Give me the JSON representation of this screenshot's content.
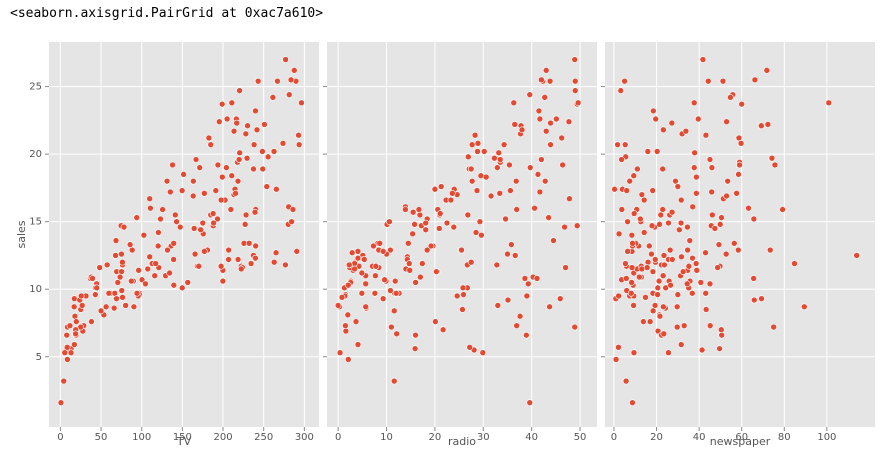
{
  "output_text": "<seaborn.axisgrid.PairGrid at 0xac7a610>",
  "chart_data": {
    "type": "scatter",
    "color": "#e24a33",
    "grid": true,
    "ylabel": "sales",
    "ylim": [
      -0.2,
      28.3
    ],
    "yticks": [
      5,
      10,
      15,
      20,
      25
    ],
    "y": [
      22.1,
      10.4,
      9.3,
      18.5,
      12.9,
      7.2,
      11.8,
      13.2,
      4.8,
      10.6,
      8.6,
      17.4,
      9.2,
      9.7,
      19,
      22.4,
      12.5,
      24.4,
      11.3,
      14.6,
      18,
      12.5,
      5.6,
      15.5,
      9.7,
      12,
      15,
      15.9,
      18.9,
      10.5,
      21.4,
      11.9,
      9.6,
      17.4,
      9.5,
      12.8,
      25.4,
      14.7,
      10.1,
      21.5,
      16.6,
      17.1,
      20.7,
      12.9,
      8.5,
      14.9,
      10.6,
      23.2,
      14.8,
      9.7,
      11.4,
      10.7,
      22.6,
      21.2,
      20.2,
      23.7,
      5.5,
      13.2,
      23.8,
      18.4,
      8.1,
      24.2,
      15.7,
      14,
      18,
      9.3,
      9.5,
      13.4,
      18.9,
      22.3,
      18.3,
      12.4,
      8.8,
      11,
      17,
      8.7,
      6.9,
      14.2,
      5.3,
      11,
      11.8,
      12.3,
      11.3,
      13.6,
      21.7,
      15.2,
      12,
      16,
      12.9,
      16.7,
      11.2,
      7.3,
      19.4,
      22.2,
      11.5,
      16.9,
      11.7,
      15.5,
      25.4,
      17.2,
      11.7,
      23.8,
      14.8,
      14.7,
      20.7,
      19.2,
      7.2,
      8.7,
      5.3,
      19.8,
      13.4,
      21.8,
      14.1,
      15.9,
      14.6,
      12.6,
      12.2,
      9.4,
      15.9,
      6.6,
      15.5,
      7,
      11.6,
      15.2,
      19.7,
      10.6,
      6.6,
      8.8,
      24.7,
      9.7,
      1.6,
      12.7,
      5.7,
      19.6,
      10.8,
      11.6,
      9.5,
      20.8,
      9.6,
      20.7,
      10.9,
      19.2,
      20.1,
      10.4,
      11.4,
      10.3,
      13.2,
      25.4,
      10.9,
      10.1,
      16.1,
      11.6,
      16.6,
      19,
      15.6,
      3.2,
      15.3,
      10.1,
      7.3,
      12.9,
      14.4,
      13.3,
      14.9,
      18,
      11.9,
      11.9,
      8,
      12.2,
      17.1,
      15,
      8.4,
      14.5,
      7.6,
      11.7,
      11.5,
      27,
      20.2,
      11.7,
      11.8,
      12.6,
      10.5,
      12.2,
      8.7,
      26.2,
      17.6,
      22.6,
      10.3,
      17.3,
      15.9,
      6.7,
      10.8,
      9.9,
      5.9,
      19.6,
      17.3,
      7.6,
      9.7,
      12.8,
      25.5,
      13.4
    ],
    "panels": [
      {
        "xlabel": "TV",
        "xlim": [
          -14,
          318
        ],
        "xticks": [
          0,
          50,
          100,
          150,
          200,
          250,
          300
        ],
        "x": [
          230.1,
          44.5,
          17.2,
          151.5,
          180.8,
          8.7,
          57.5,
          120.2,
          8.6,
          199.8,
          66.1,
          214.7,
          23.8,
          97.5,
          204.1,
          195.4,
          67.8,
          281.4,
          69.2,
          147.3,
          218.4,
          237.4,
          13.2,
          228.3,
          62.3,
          262.9,
          142.9,
          240.1,
          248.8,
          70.6,
          292.9,
          112.9,
          97.2,
          265.6,
          95.7,
          290.7,
          266.9,
          74.7,
          43.1,
          228,
          202.5,
          177,
          293.6,
          206.9,
          25.1,
          175.1,
          89.7,
          239.9,
          227.2,
          66.9,
          199.8,
          100.4,
          216.4,
          182.6,
          262.7,
          198.9,
          7.3,
          136.2,
          210.8,
          210.7,
          53.5,
          261.3,
          239.3,
          102.7,
          131.1,
          69,
          31.5,
          139.3,
          237.4,
          216.8,
          199.1,
          109.8,
          26.8,
          129.4,
          213.4,
          16.9,
          27.5,
          120.5,
          5.4,
          116,
          76.4,
          239.8,
          75.3,
          68.4,
          213.5,
          193.2,
          76.3,
          110.7,
          88.3,
          109.8,
          134.3,
          28.6,
          217.7,
          250.9,
          107.4,
          163.3,
          197.6,
          184.9,
          289.7,
          135.2,
          222.4,
          296.4,
          280.2,
          187.9,
          238.2,
          137.9,
          25,
          90.4,
          13.1,
          255.4,
          225.8,
          241.7,
          175.7,
          209.6,
          78.2,
          75.1,
          139.2,
          76.4,
          125.7,
          19.4,
          141.3,
          18.8,
          224,
          123.1,
          229.5,
          87.2,
          7.8,
          80.2,
          220.3,
          59.6,
          0.7,
          265.2,
          8.4,
          219.8,
          36.9,
          48.3,
          25.6,
          273.7,
          43,
          184.9,
          73.4,
          193.7,
          220.5,
          104.6,
          96.2,
          140.3,
          240.1,
          243.2,
          38,
          44.7,
          280.7,
          121,
          197.6,
          171.3,
          187.8,
          4.1,
          93.9,
          149.8,
          11.7,
          131.7,
          172.5,
          85.7,
          188.4,
          163.5,
          117.2,
          234.5,
          17.9,
          206.8,
          215.4,
          284.3,
          50,
          164.5,
          19.6,
          168.4,
          222.4,
          276.9,
          248.4,
          170.2,
          276.7,
          165.6,
          156.6,
          218.5,
          56.2,
          287.6,
          253.8,
          205,
          139.5,
          191.1,
          286,
          18.7,
          39.5,
          75.5,
          17.2,
          166.8,
          149.7,
          38.2,
          94.2,
          177,
          283.6,
          232.1
        ]
      },
      {
        "xlabel": "radio",
        "xlim": [
          -2.3,
          53.5
        ],
        "xticks": [
          0,
          10,
          20,
          30,
          40,
          50
        ],
        "x": [
          37.8,
          39.3,
          45.9,
          41.3,
          10.8,
          48.9,
          32.8,
          19.6,
          2.1,
          2.6,
          5.8,
          24,
          35.1,
          7.6,
          32.9,
          47.7,
          36.6,
          39.6,
          20.5,
          23.9,
          27.7,
          5.1,
          15.9,
          16.9,
          12.6,
          3.5,
          29.3,
          16.7,
          27.1,
          16,
          28.3,
          17.4,
          1.5,
          20,
          1.4,
          4.1,
          43.8,
          49.4,
          26.7,
          37.7,
          22.3,
          33.4,
          27.7,
          8.4,
          25.7,
          22.5,
          9.9,
          41.5,
          15.8,
          11.7,
          3.1,
          9.6,
          41.7,
          46.2,
          28.8,
          49.4,
          28.1,
          19.2,
          49.6,
          29.5,
          2,
          42.7,
          15.5,
          29.6,
          42.8,
          9.3,
          24.6,
          14.5,
          27.5,
          43.9,
          30.6,
          14.3,
          33,
          5.7,
          24.6,
          43.7,
          1.6,
          28.5,
          29.9,
          7.7,
          26.7,
          4.1,
          20.3,
          44.5,
          43,
          18.4,
          27.5,
          40.6,
          25.5,
          47.8,
          4.9,
          1.5,
          33.5,
          36.5,
          14,
          31.6,
          3.5,
          21,
          42.3,
          41.7,
          4.3,
          36.3,
          10.1,
          17.2,
          34.3,
          46.4,
          11,
          0.3,
          0.4,
          26.9,
          8.2,
          38,
          15.4,
          20.6,
          46.8,
          35,
          14.3,
          0.8,
          36.9,
          16,
          26.8,
          21.7,
          2.4,
          34.6,
          32.3,
          11.8,
          38.9,
          0,
          49,
          12,
          39.6,
          2.9,
          27.2,
          33.5,
          38.6,
          47,
          39,
          28.9,
          25.9,
          43.9,
          17,
          35.4,
          33.2,
          5.7,
          14.8,
          1.9,
          7.3,
          49,
          40.3,
          25.8,
          13.9,
          8.4,
          23.3,
          39.7,
          21.1,
          11.6,
          43.5,
          1.3,
          36.9,
          18.4,
          18.1,
          35.8,
          18.1,
          36.8,
          14.7,
          3.4,
          37.6,
          5.2,
          23.6,
          10.6,
          11.6,
          20.9,
          20.1,
          7.1,
          3.4,
          48.9,
          30.2,
          7.8,
          2.3,
          10,
          2.6,
          5.4,
          5.7,
          43,
          21.3,
          45.1,
          2.1,
          28.7,
          13.9,
          12.1,
          41.1,
          10.8,
          4.1,
          42,
          35.6,
          3.7,
          4.9,
          9.3,
          42,
          8.6
        ]
      },
      {
        "xlabel": "newspaper",
        "xlim": [
          -4.2,
          122.6
        ],
        "xticks": [
          0,
          20,
          40,
          60,
          80,
          100
        ],
        "x": [
          69.2,
          45.1,
          69.3,
          58.5,
          58.4,
          75,
          23.5,
          11.6,
          1,
          21.2,
          24.2,
          4,
          65.9,
          7.2,
          46,
          52.9,
          114,
          55.8,
          18.3,
          19.1,
          53.4,
          23.5,
          49.6,
          26.2,
          18.3,
          19.5,
          12.6,
          22.9,
          22.9,
          40.8,
          43.2,
          38.6,
          30,
          0.3,
          7.4,
          8.5,
          5,
          45.7,
          35.1,
          32,
          31.6,
          38.7,
          1.8,
          26.4,
          43.3,
          31.5,
          35.7,
          18.5,
          49.9,
          36.8,
          34.6,
          3.6,
          39.6,
          58.7,
          15.9,
          60,
          41.4,
          16.6,
          37.7,
          9.3,
          21.4,
          54.7,
          27.3,
          8.4,
          28.9,
          0.9,
          2.2,
          10.2,
          11,
          27.2,
          38.7,
          31.7,
          19.3,
          31.3,
          13.1,
          89.4,
          20.7,
          14.2,
          9.4,
          23.1,
          22.3,
          36.9,
          32.5,
          35.6,
          33.8,
          65.7,
          16,
          63.2,
          73.4,
          51.4,
          9.3,
          33,
          59,
          72.3,
          10.9,
          52.9,
          5.9,
          22,
          51.2,
          45.9,
          49.8,
          100.9,
          21.4,
          17.9,
          5.3,
          59,
          29.7,
          23.2,
          25.6,
          5.5,
          56.5,
          23.2,
          2.4,
          10.7,
          34.5,
          52.7,
          25.6,
          14.8,
          79.2,
          22.3,
          46.2,
          50.4,
          15.6,
          12.4,
          74.2,
          25.9,
          50.6,
          9.2,
          3.2,
          43.1,
          8.7,
          43,
          2.1,
          45.1,
          65.6,
          8.5,
          9.3,
          59.7,
          20.5,
          1.7,
          12.9,
          75.6,
          37.9,
          34.4,
          38.9,
          9,
          8.7,
          44.3,
          11.9,
          20.6,
          37,
          48.7,
          14.2,
          37.7,
          9.5,
          5.7,
          50.5,
          24.3,
          45.2,
          34.6,
          30.7,
          49.3,
          25.6,
          7.4,
          5.4,
          84.8,
          21.6,
          19.4,
          57.6,
          6.4,
          18.4,
          47.4,
          17,
          12.8,
          13.1,
          41.8,
          20.3,
          35.2,
          23.7,
          17.6,
          8.3,
          27.4,
          29.7,
          71.8,
          30,
          19.6,
          26.6,
          18.2,
          3.7,
          23.4,
          5.8,
          6,
          31.6,
          3.6,
          6,
          13.8,
          8.1,
          6.4,
          66.2,
          8.7
        ]
      }
    ]
  }
}
